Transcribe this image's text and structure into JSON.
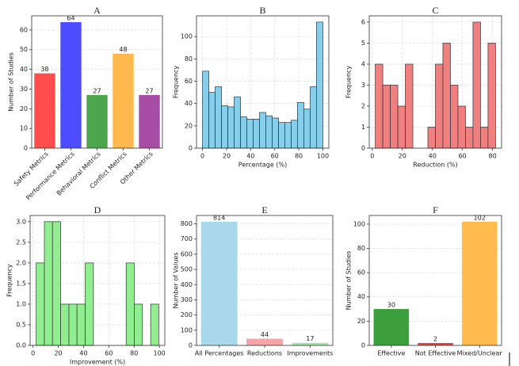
{
  "chart_data": [
    {
      "type": "bar",
      "title": "A",
      "ylabel": "Number of Studies",
      "categories": [
        "Safety Metrics",
        "Performance Metrics",
        "Behavioral Metrics",
        "Conflict Metrics",
        "Other Metrics"
      ],
      "values": [
        38,
        64,
        27,
        48,
        27
      ],
      "colors": [
        "#ff4d4d",
        "#4d4dff",
        "#4da64d",
        "#ffb84d",
        "#a64da6"
      ],
      "xtick_rotation": 45,
      "ylim": [
        0,
        67.2
      ],
      "yticks": [
        0,
        10,
        20,
        30,
        40,
        50,
        60
      ],
      "grid": true
    },
    {
      "type": "histogram",
      "title": "B",
      "xlabel": "Percentage (%)",
      "ylabel": "Frequency",
      "bins": [
        0,
        5.3,
        10.5,
        15.8,
        21.1,
        26.3,
        31.6,
        36.8,
        42.1,
        47.4,
        52.6,
        57.9,
        63.2,
        68.4,
        73.7,
        78.9,
        84.2,
        89.5,
        94.7,
        100
      ],
      "counts": [
        69,
        50,
        55,
        38,
        37,
        46,
        28,
        26,
        26,
        32,
        29,
        27,
        23,
        23,
        25,
        41,
        35,
        55,
        113
      ],
      "color": "#87ceeb",
      "xlim": [
        -5,
        105
      ],
      "xticks": [
        0,
        20,
        40,
        60,
        80,
        100
      ],
      "ylim": [
        0,
        118.6
      ],
      "yticks": [
        0,
        20,
        40,
        60,
        80,
        100
      ],
      "grid": true
    },
    {
      "type": "histogram",
      "title": "C",
      "xlabel": "Reduction (%)",
      "ylabel": "Frequency",
      "bins": [
        2,
        7,
        12,
        17,
        22,
        27,
        32,
        37,
        42,
        47,
        52,
        57,
        62,
        67,
        72,
        77,
        82
      ],
      "counts": [
        4,
        3,
        3,
        2,
        4,
        0,
        0,
        1,
        4,
        5,
        3,
        2,
        1,
        6,
        1,
        5
      ],
      "color": "#f08080",
      "xlim": [
        -2,
        86
      ],
      "xticks": [
        0,
        20,
        40,
        60,
        80
      ],
      "ylim": [
        0,
        6.3
      ],
      "yticks": [
        0,
        1,
        2,
        3,
        4,
        5,
        6
      ],
      "grid": true
    },
    {
      "type": "histogram",
      "title": "D",
      "xlabel": "Improvement (%)",
      "ylabel": "Frequency",
      "bins": [
        2.5,
        9,
        15.4,
        21.9,
        28.4,
        34.8,
        41.3,
        47.8,
        54.3,
        60.7,
        67.2,
        73.7,
        80.1,
        86.6,
        93.1,
        99.5
      ],
      "counts": [
        2,
        3,
        3,
        1,
        1,
        1,
        2,
        0,
        0,
        0,
        0,
        2,
        1,
        0,
        1
      ],
      "color": "#90ee90",
      "xlim": [
        -2.3,
        104.3
      ],
      "xticks": [
        0,
        20,
        40,
        60,
        80,
        100
      ],
      "ylim": [
        0,
        3.15
      ],
      "yticks": [
        {
          "value": 0,
          "label": "0.0"
        },
        0.5,
        {
          "value": 1,
          "label": "1.0"
        },
        1.5,
        {
          "value": 2,
          "label": "2.0"
        },
        2.5,
        {
          "value": 3,
          "label": "3.0"
        }
      ],
      "grid": true
    },
    {
      "type": "bar",
      "title": "E",
      "ylabel": "Number of Values",
      "categories": [
        "All Percentages",
        "Reductions",
        "Improvements"
      ],
      "values": [
        814,
        44,
        17
      ],
      "colors": [
        "#a8d8ea",
        "#f4a6a6",
        "#a8e6a8"
      ],
      "ylim": [
        0,
        855
      ],
      "yticks": [
        0,
        100,
        200,
        300,
        400,
        500,
        600,
        700,
        800
      ],
      "grid": true
    },
    {
      "type": "bar",
      "title": "F",
      "ylabel": "Number of Studies",
      "categories": [
        "Effective",
        "Not Effective",
        "Mixed/Unclear"
      ],
      "values": [
        30,
        2,
        102
      ],
      "colors": [
        "#3c9f3c",
        "#e04545",
        "#ffbb4d"
      ],
      "ylim": [
        0,
        107.1
      ],
      "yticks": [
        0,
        20,
        40,
        60,
        80,
        100
      ],
      "grid": true
    }
  ]
}
